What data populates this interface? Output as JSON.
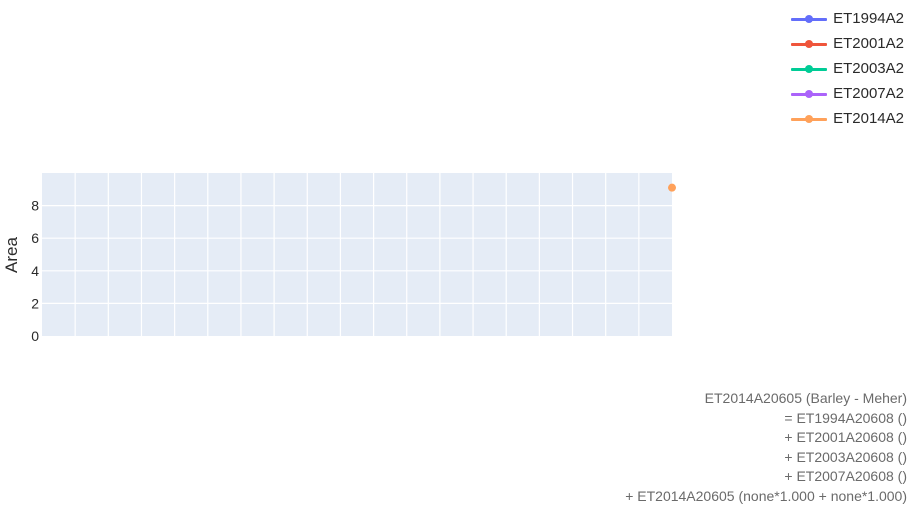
{
  "chart_data": {
    "type": "line",
    "title": "",
    "xlabel": "",
    "ylabel": "Area",
    "ylim": [
      0,
      10
    ],
    "y_ticks": [
      0,
      2,
      4,
      6,
      8
    ],
    "x_tick_labels": [],
    "grid": true,
    "legend_position": "top-right",
    "x_range": [
      0,
      19
    ],
    "series": [
      {
        "name": "ET1994A2",
        "color": "#636efa",
        "points": []
      },
      {
        "name": "ET2001A2",
        "color": "#ef553b",
        "points": []
      },
      {
        "name": "ET2003A2",
        "color": "#00cc96",
        "points": []
      },
      {
        "name": "ET2007A2",
        "color": "#ab63fa",
        "points": []
      },
      {
        "name": "ET2014A2",
        "color": "#ffa15a",
        "points": [
          {
            "x": 19,
            "y": 9.1
          }
        ]
      }
    ]
  },
  "annotation": [
    "ET2014A20605 (Barley - Meher)",
    "= ET1994A20608 ()",
    "+ ET2001A20608 ()",
    "+ ET2003A20608 ()",
    "+ ET2007A20608 ()",
    "+ ET2014A20605 (none*1.000 + none*1.000)"
  ]
}
